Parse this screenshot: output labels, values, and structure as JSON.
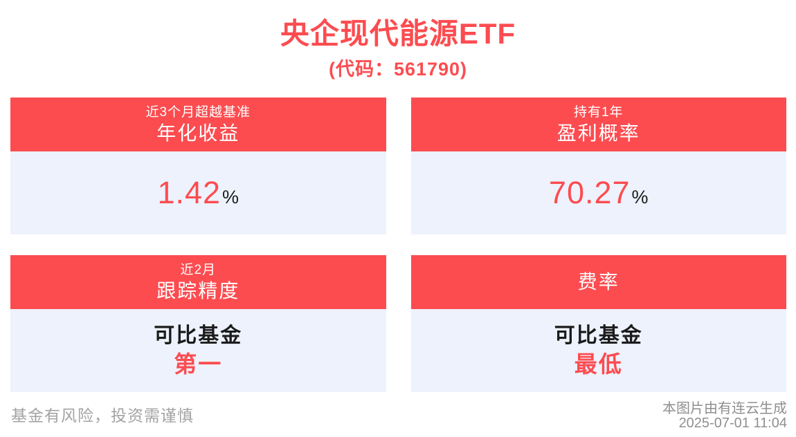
{
  "colors": {
    "accent": "#fc4c50",
    "card_body_bg": "#edf2fc",
    "text_dark": "#1b1b1b",
    "muted": "#a3a3a3"
  },
  "header": {
    "title": "央企现代能源ETF",
    "subtitle": "(代码：561790)"
  },
  "cards": [
    {
      "header_sub": "近3个月超越基准",
      "header_title": "年化收益",
      "value": "1.42",
      "unit": "%"
    },
    {
      "header_sub": "持有1年",
      "header_title": "盈利概率",
      "value": "70.27",
      "unit": "%"
    },
    {
      "header_sub": "近2月",
      "header_title": "跟踪精度",
      "line1": "可比基金",
      "line2": "第一"
    },
    {
      "header_title": "费率",
      "line1": "可比基金",
      "line2": "最低"
    }
  ],
  "footer": {
    "disclaimer": "基金有风险，投资需谨慎",
    "credit": "本图片由有连云生成",
    "timestamp": "2025-07-01 11:04"
  }
}
